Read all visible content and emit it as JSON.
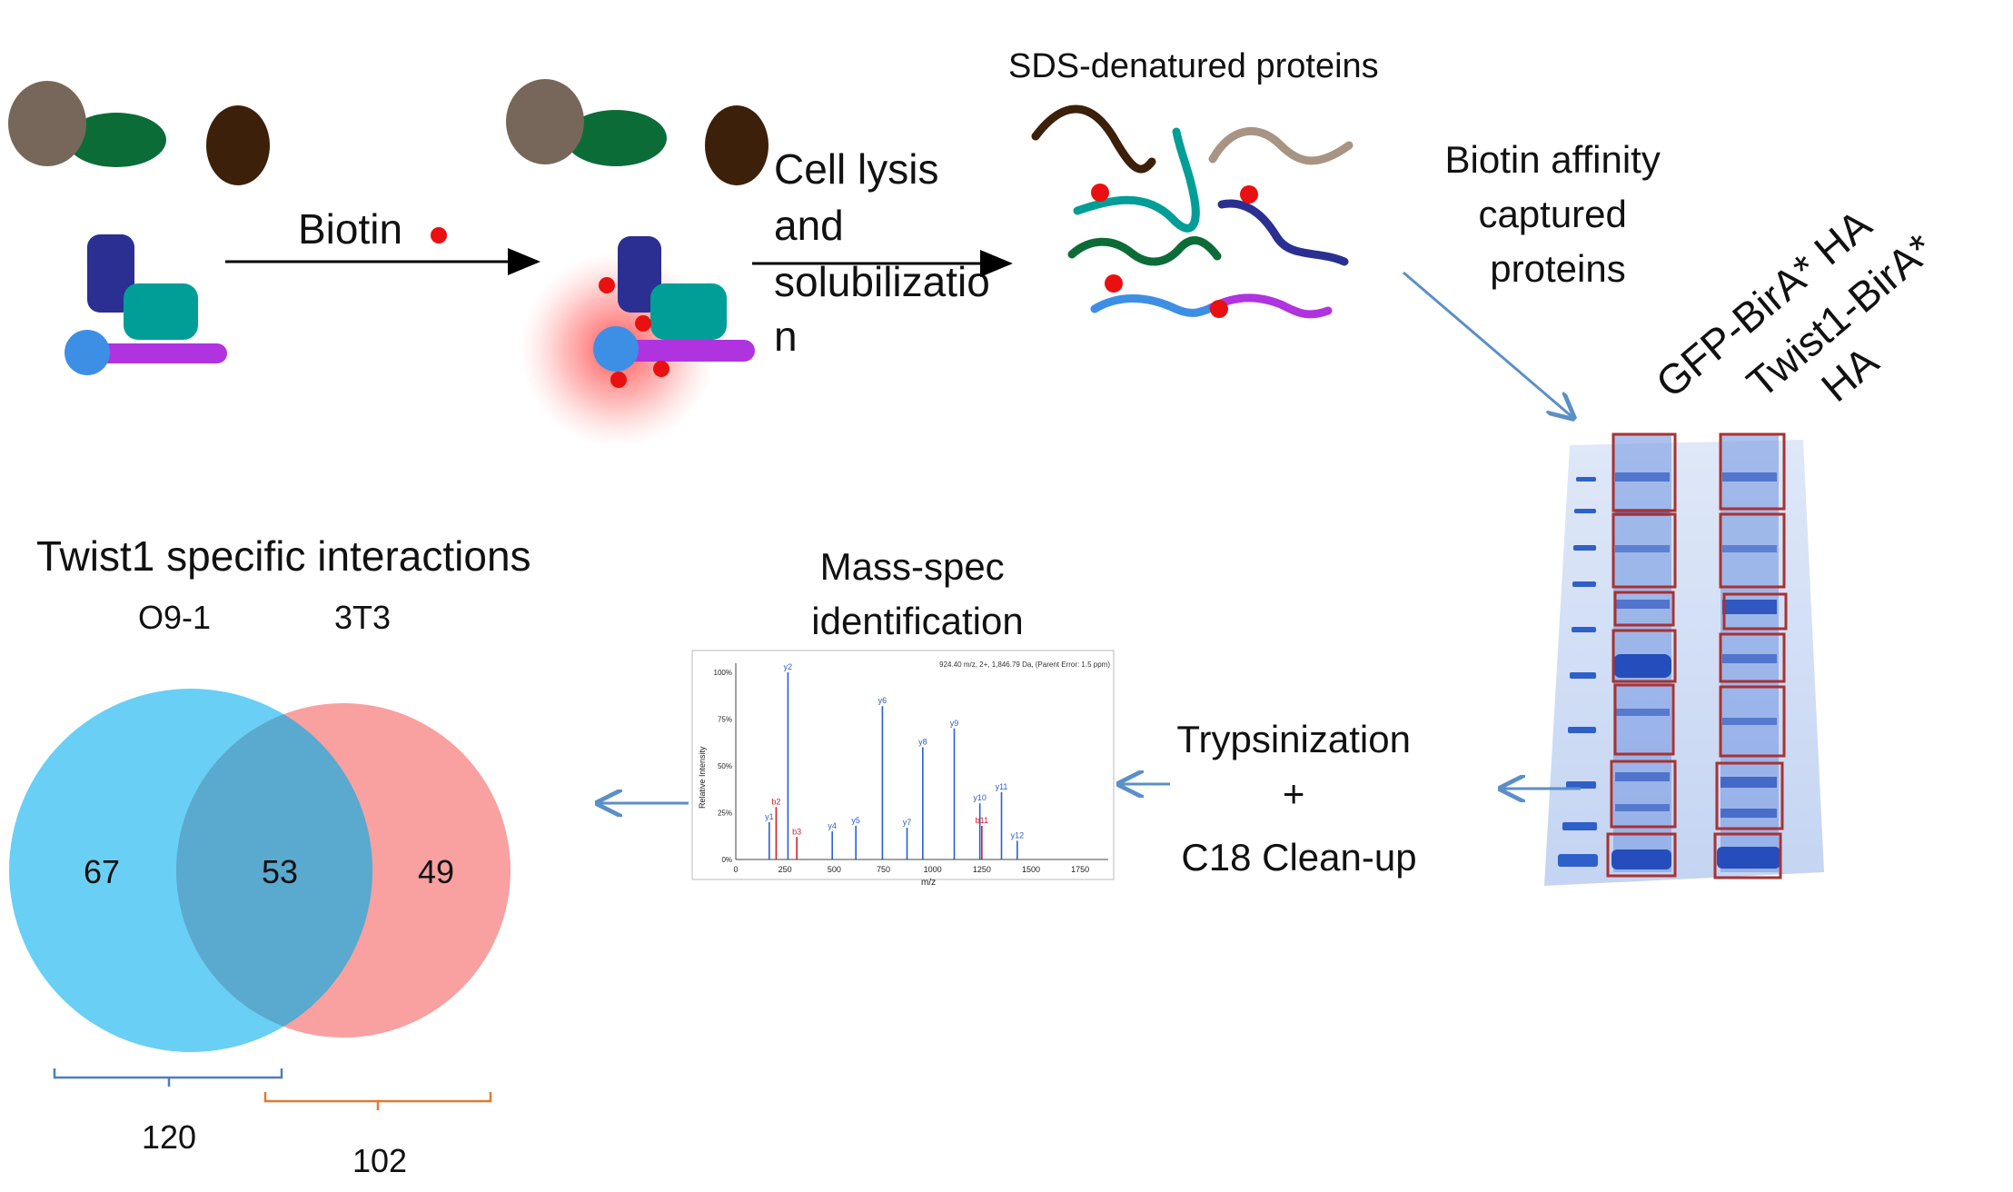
{
  "colors": {
    "cell_grey": "#76675a",
    "cell_green": "#0c6c38",
    "cell_brown": "#3d2009",
    "protein_navy": "#2a2f91",
    "protein_teal": "#009e96",
    "protein_blue": "#3d8fe6",
    "protein_purple": "#b033e0",
    "biotin_red": "#e81010",
    "gel_blue": "#2f5fc8",
    "gel_box": "#a83232",
    "arrow_blue": "#5b8fc6",
    "venn_blue": "#4fc7f2",
    "venn_red": "#f9a0a0",
    "venn_overlap": "#5aa9cf",
    "bracket_blue": "#4a7fc0",
    "bracket_orange": "#e07a30"
  },
  "labels": {
    "biotin": "Biotin",
    "lysis": [
      "Cell lysis",
      "and",
      "solubilizatio",
      "n"
    ],
    "sds": "SDS-denatured proteins",
    "affinity": [
      "Biotin affinity",
      "captured",
      "proteins"
    ],
    "lane1": "GFP-BirA* HA",
    "lane2": [
      "Twist1-BirA*",
      "HA"
    ],
    "massspec": [
      "Mass-spec",
      "identification"
    ],
    "tryps": [
      "Trypsinization",
      "+",
      "C18 Clean-up"
    ]
  },
  "spectrum": {
    "ylabel": "Relative Intensity",
    "xlabel": "m/z",
    "y_ticks": [
      "100%",
      "75%",
      "50%",
      "25%",
      "0%"
    ],
    "x_ticks": [
      "0",
      "250",
      "500",
      "750",
      "1000",
      "1250",
      "1500",
      "1750"
    ],
    "header": "924.40 m/z, 2+, 1,846.79 Da, (Parent Error: 1.5 ppm)",
    "peaks": [
      {
        "mz": 170,
        "rel": 0.2,
        "label": "y1",
        "ion": "y"
      },
      {
        "mz": 205,
        "rel": 0.28,
        "label": "b2",
        "ion": "b"
      },
      {
        "mz": 265,
        "rel": 1.0,
        "label": "y2",
        "ion": "y"
      },
      {
        "mz": 310,
        "rel": 0.12,
        "label": "b3",
        "ion": "b"
      },
      {
        "mz": 490,
        "rel": 0.15,
        "label": "y4",
        "ion": "y"
      },
      {
        "mz": 610,
        "rel": 0.18,
        "label": "y5",
        "ion": "y"
      },
      {
        "mz": 745,
        "rel": 0.82,
        "label": "y6",
        "ion": "y"
      },
      {
        "mz": 870,
        "rel": 0.17,
        "label": "y7",
        "ion": "y"
      },
      {
        "mz": 950,
        "rel": 0.6,
        "label": "y8",
        "ion": "y"
      },
      {
        "mz": 1110,
        "rel": 0.7,
        "label": "y9",
        "ion": "y"
      },
      {
        "mz": 1240,
        "rel": 0.3,
        "label": "y10",
        "ion": "y"
      },
      {
        "mz": 1250,
        "rel": 0.18,
        "label": "b11",
        "ion": "b"
      },
      {
        "mz": 1350,
        "rel": 0.36,
        "label": "y11",
        "ion": "y"
      },
      {
        "mz": 1430,
        "rel": 0.1,
        "label": "y12",
        "ion": "y"
      }
    ]
  },
  "venn": {
    "title": "Twist1 specific interactions",
    "set_a": "O9-1",
    "set_b": "3T3",
    "only_a": "67",
    "both": "53",
    "only_b": "49",
    "total_a": "120",
    "total_b": "102"
  }
}
